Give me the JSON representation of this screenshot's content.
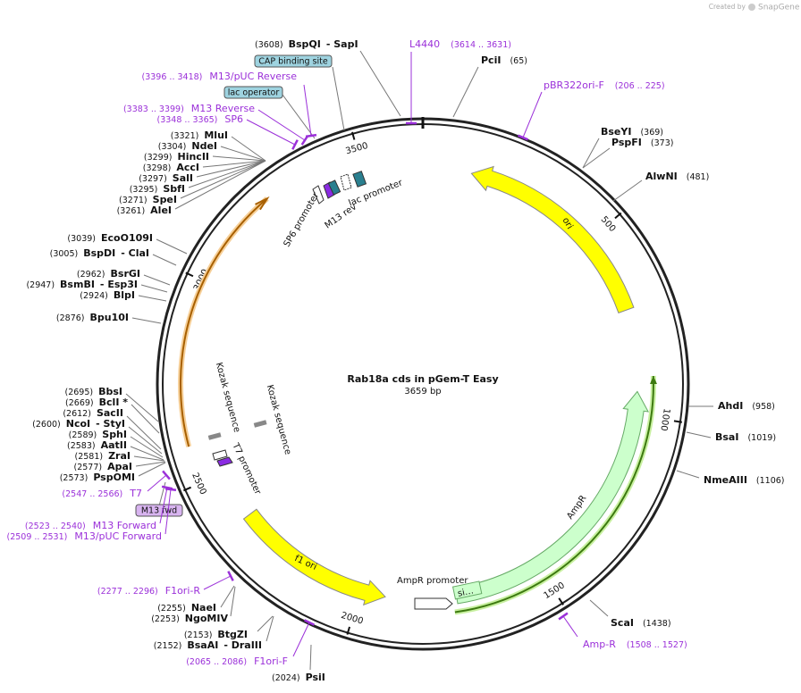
{
  "title": "Rab18a cds in pGem-T Easy",
  "subtitle": "3659 bp",
  "watermark": "Created by",
  "brand": "SnapGene",
  "ruler": [
    500,
    1000,
    1500,
    2000,
    2500,
    3000,
    3500
  ],
  "sites": [
    {
      "pos": "(3608)",
      "name": "BspQI",
      "alt": "- SapI"
    },
    {
      "pos": "(65)",
      "name": "PciI"
    },
    {
      "pos": "(369)",
      "name": "BseYI"
    },
    {
      "pos": "(373)",
      "name": "PspFI"
    },
    {
      "pos": "(481)",
      "name": "AlwNI"
    },
    {
      "pos": "(958)",
      "name": "AhdI"
    },
    {
      "pos": "(1019)",
      "name": "BsaI"
    },
    {
      "pos": "(1106)",
      "name": "NmeAIII"
    },
    {
      "pos": "(1438)",
      "name": "ScaI"
    },
    {
      "pos": "(2024)",
      "name": "PsiI"
    },
    {
      "pos": "(2153)",
      "name": "BtgZI"
    },
    {
      "pos": "(2152)",
      "name": "BsaAI",
      "alt": "- DraIII"
    },
    {
      "pos": "(2255)",
      "name": "NaeI"
    },
    {
      "pos": "(2253)",
      "name": "NgoMIV"
    },
    {
      "pos": "(2573)",
      "name": "PspOMI"
    },
    {
      "pos": "(2577)",
      "name": "ApaI"
    },
    {
      "pos": "(2581)",
      "name": "ZraI"
    },
    {
      "pos": "(2583)",
      "name": "AatII"
    },
    {
      "pos": "(2589)",
      "name": "SphI"
    },
    {
      "pos": "(2600)",
      "name": "NcoI",
      "alt": "- StyI"
    },
    {
      "pos": "(2612)",
      "name": "SacII"
    },
    {
      "pos": "(2669)",
      "name": "BclI *"
    },
    {
      "pos": "(2695)",
      "name": "BbsI"
    },
    {
      "pos": "(2876)",
      "name": "Bpu10I"
    },
    {
      "pos": "(2924)",
      "name": "BlpI"
    },
    {
      "pos": "(2947)",
      "name": "BsmBI",
      "alt": "- Esp3I"
    },
    {
      "pos": "(2962)",
      "name": "BsrGI"
    },
    {
      "pos": "(3005)",
      "name": "BspDI",
      "alt": "- ClaI"
    },
    {
      "pos": "(3039)",
      "name": "EcoO109I"
    },
    {
      "pos": "(3261)",
      "name": "AleI"
    },
    {
      "pos": "(3271)",
      "name": "SpeI"
    },
    {
      "pos": "(3295)",
      "name": "SbfI"
    },
    {
      "pos": "(3297)",
      "name": "SalI"
    },
    {
      "pos": "(3298)",
      "name": "AccI"
    },
    {
      "pos": "(3299)",
      "name": "HincII"
    },
    {
      "pos": "(3304)",
      "name": "NdeI"
    },
    {
      "pos": "(3321)",
      "name": "MluI"
    }
  ],
  "primers": [
    {
      "name": "L4440",
      "range": "(3614 .. 3631)"
    },
    {
      "name": "pBR322ori-F",
      "range": "(206 .. 225)"
    },
    {
      "name": "Amp-R",
      "range": "(1508 .. 1527)"
    },
    {
      "name": "F1ori-F",
      "range": "(2065 .. 2086)"
    },
    {
      "name": "F1ori-R",
      "range": "(2277 .. 2296)"
    },
    {
      "name": "T7",
      "range": "(2547 .. 2566)"
    },
    {
      "name": "M13 Forward",
      "range": "(2523 .. 2540)"
    },
    {
      "name": "M13/pUC Forward",
      "range": "(2509 .. 2531)"
    },
    {
      "name": "SP6",
      "range": "(3348 .. 3365)"
    },
    {
      "name": "M13 Reverse",
      "range": "(3383 .. 3399)"
    },
    {
      "name": "M13/pUC Reverse",
      "range": "(3396 .. 3418)"
    }
  ],
  "boxes": [
    "CAP binding site",
    "lac operator",
    "M13 fwd"
  ],
  "features": [
    "ori",
    "f1 ori",
    "AmpR",
    "AmpR promoter",
    "si…",
    "SP6 promoter",
    "M13 rev",
    "lac promoter",
    "Kozak sequence",
    "Kozak sequence",
    "T7 promoter"
  ]
}
